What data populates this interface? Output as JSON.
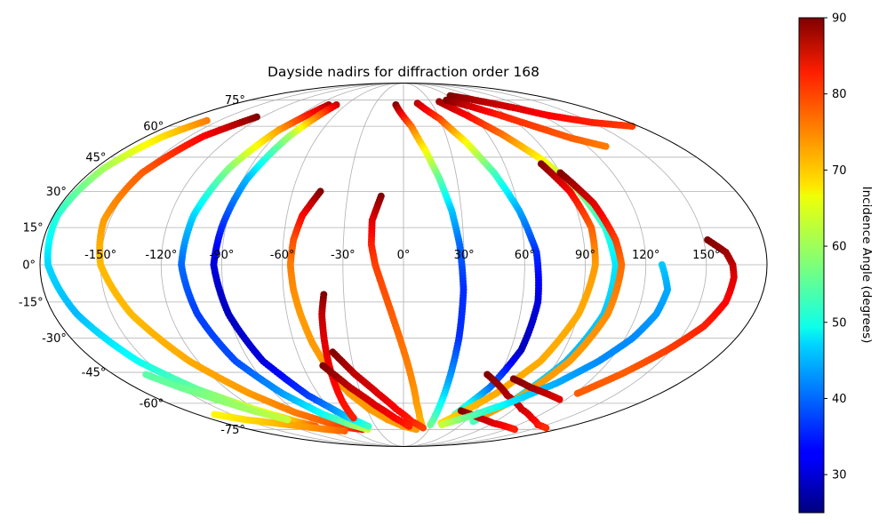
{
  "chart_data": {
    "type": "scatter",
    "projection": "mollweide",
    "title": "Dayside nadirs for diffraction order 168",
    "xticks": [
      -150,
      -120,
      -90,
      -60,
      -30,
      0,
      30,
      60,
      90,
      120,
      150
    ],
    "yticks": [
      -75,
      -60,
      -45,
      -30,
      -15,
      0,
      15,
      30,
      45,
      60,
      75
    ],
    "xtick_labels": [
      "-150°",
      "-120°",
      "-90°",
      "-60°",
      "-30°",
      "0°",
      "30°",
      "60°",
      "90°",
      "120°",
      "150°"
    ],
    "ytick_labels": [
      "-75°",
      "-60°",
      "-45°",
      "-30°",
      "-15°",
      "0°",
      "15°",
      "30°",
      "45°",
      "60°",
      "75°"
    ],
    "grid": true,
    "colormap": "jet",
    "colorbar": {
      "label": "Incidence Angle (degrees)",
      "vmin": 25,
      "vmax": 90,
      "ticks": [
        30,
        40,
        50,
        60,
        70,
        80,
        90
      ],
      "tick_labels": [
        "30",
        "40",
        "50",
        "60",
        "70",
        "80",
        "90"
      ]
    },
    "series": [
      {
        "id": "t1",
        "lon": [
          -160,
          -168,
          -175,
          -178,
          -176,
          -168,
          -155,
          -140,
          -122,
          -105,
          -95
        ],
        "lat": [
          63,
          55,
          40,
          20,
          0,
          -20,
          -40,
          -53,
          -63,
          -70,
          -73
        ],
        "inc": [
          74,
          68,
          60,
          52,
          47,
          45,
          50,
          56,
          63,
          70,
          76
        ]
      },
      {
        "id": "t2",
        "lon": [
          -125,
          -140,
          -150,
          -153,
          -150,
          -140,
          -125,
          -108,
          -92,
          -75,
          -60,
          -48
        ],
        "lat": [
          65,
          55,
          38,
          18,
          0,
          -20,
          -40,
          -55,
          -65,
          -71,
          -74,
          -75
        ],
        "inc": [
          90,
          82,
          76,
          72,
          70,
          70,
          71,
          72,
          74,
          76,
          79,
          82
        ]
      },
      {
        "id": "t3",
        "lon": [
          -78,
          -92,
          -102,
          -108,
          -110,
          -106,
          -98,
          -85,
          -70,
          -55,
          -42
        ],
        "lat": [
          72,
          58,
          40,
          20,
          0,
          -20,
          -40,
          -55,
          -66,
          -72,
          -75
        ],
        "inc": [
          87,
          72,
          58,
          47,
          40,
          37,
          38,
          43,
          50,
          57,
          62
        ]
      },
      {
        "id": "t4",
        "lon": [
          -70,
          -80,
          -88,
          -92,
          -94,
          -90,
          -82,
          -68,
          -52,
          -38
        ],
        "lat": [
          72,
          55,
          35,
          15,
          0,
          -20,
          -40,
          -56,
          -67,
          -73
        ],
        "inc": [
          85,
          60,
          45,
          36,
          31,
          29,
          31,
          37,
          45,
          53
        ]
      },
      {
        "id": "t5",
        "lon": [
          -45,
          -52,
          -55,
          -56,
          -55,
          -53,
          -50,
          -45,
          -38,
          -28,
          -15,
          0,
          15
        ],
        "lat": [
          30,
          20,
          10,
          0,
          -10,
          -20,
          -32,
          -45,
          -55,
          -63,
          -69,
          -73,
          -75
        ],
        "inc": [
          90,
          82,
          77,
          74,
          73,
          72,
          72,
          72,
          72,
          72,
          72,
          72,
          72
        ]
      },
      {
        "id": "t6",
        "lon": [
          -12,
          -16,
          -16,
          -14,
          -10,
          -6,
          -2,
          2,
          6,
          10,
          15,
          20
        ],
        "lat": [
          28,
          18,
          8,
          0,
          -10,
          -20,
          -30,
          -40,
          -50,
          -60,
          -68,
          -73
        ],
        "inc": [
          90,
          84,
          80,
          78,
          77,
          76,
          75,
          74,
          73,
          72,
          71,
          70
        ]
      },
      {
        "id": "t7",
        "lon": [
          -40,
          -42,
          -43,
          -44,
          -45,
          -46,
          -46
        ],
        "lat": [
          -12,
          -20,
          -30,
          -40,
          -50,
          -60,
          -68
        ],
        "inc": [
          90,
          86,
          84,
          83,
          82,
          81,
          80
        ]
      },
      {
        "id": "t8",
        "lon": [
          -40,
          -30,
          -18,
          -6,
          8,
          22
        ],
        "lat": [
          -36,
          -46,
          -55,
          -63,
          -70,
          -74
        ],
        "inc": [
          90,
          86,
          84,
          82,
          80,
          78
        ]
      },
      {
        "id": "t9",
        "lon": [
          -48,
          -36,
          -22,
          -8,
          6
        ],
        "lat": [
          -42,
          -52,
          -61,
          -68,
          -73
        ],
        "inc": [
          90,
          86,
          84,
          82,
          80
        ]
      },
      {
        "id": "t10",
        "lon": [
          -8,
          6,
          14,
          20,
          25,
          28,
          30,
          30,
          29,
          28
        ],
        "lat": [
          72,
          60,
          48,
          36,
          22,
          8,
          -10,
          -30,
          -50,
          -72
        ],
        "inc": [
          90,
          75,
          66,
          56,
          46,
          40,
          36,
          36,
          44,
          56
        ]
      },
      {
        "id": "t11",
        "lon": [
          15,
          30,
          42,
          52,
          60,
          66,
          68,
          66,
          58,
          45
        ],
        "lat": [
          73,
          64,
          52,
          38,
          22,
          5,
          -15,
          -35,
          -52,
          -66
        ],
        "inc": [
          86,
          78,
          66,
          54,
          44,
          36,
          31,
          29,
          40,
          55
        ]
      },
      {
        "id": "t12",
        "lon": [
          40,
          55,
          70,
          84,
          95,
          102,
          105,
          103,
          95,
          82,
          68
        ],
        "lat": [
          74,
          66,
          56,
          44,
          30,
          15,
          0,
          -20,
          -40,
          -58,
          -70
        ],
        "inc": [
          88,
          82,
          75,
          66,
          58,
          52,
          48,
          46,
          45,
          48,
          54
        ]
      },
      {
        "id": "t13",
        "lon": [
          82,
          90,
          95,
          95,
          90,
          80,
          65,
          50,
          38
        ],
        "lat": [
          42,
          30,
          15,
          0,
          -20,
          -40,
          -55,
          -65,
          -71
        ],
        "inc": [
          90,
          82,
          76,
          72,
          71,
          71,
          71,
          70,
          68
        ]
      },
      {
        "id": "t14",
        "lon": [
          90,
          100,
          106,
          108,
          105,
          97,
          85,
          72
        ],
        "lat": [
          38,
          25,
          10,
          0,
          -20,
          -40,
          -56,
          -66
        ],
        "inc": [
          90,
          84,
          78,
          75,
          73,
          72,
          72,
          72
        ]
      },
      {
        "id": "t15",
        "lon": [
          52,
          74,
          96,
          118,
          140,
          160
        ],
        "lat": [
          -46,
          -56,
          -63,
          -68,
          -72,
          -74
        ],
        "inc": [
          90,
          87,
          85,
          83,
          81,
          79
        ]
      },
      {
        "id": "t16",
        "lon": [
          48,
          70,
          90,
          110,
          130
        ],
        "lat": [
          -64,
          -68,
          -71,
          -73,
          -75
        ],
        "inc": [
          90,
          86,
          84,
          82,
          80
        ]
      },
      {
        "id": "t17",
        "lon": [
          63,
          78,
          95,
          110,
          125,
          150,
          175
        ],
        "lat": [
          78,
          76,
          73,
          70,
          66,
          62,
          60
        ],
        "inc": [
          90,
          88,
          86,
          84,
          82,
          80,
          78
        ]
      },
      {
        "id": "t18",
        "lon": [
          50,
          68,
          84,
          100,
          116,
          132
        ],
        "lat": [
          75,
          71,
          66,
          60,
          54,
          50
        ],
        "inc": [
          90,
          85,
          80,
          78,
          76,
          74
        ]
      },
      {
        "id": "t19",
        "lon": [
          152,
          160,
          163,
          164,
          163,
          158,
          148,
          136,
          122
        ],
        "lat": [
          10,
          5,
          0,
          -5,
          -15,
          -25,
          -35,
          -45,
          -55
        ],
        "inc": [
          90,
          88,
          86,
          84,
          82,
          80,
          78,
          76,
          76
        ]
      },
      {
        "id": "t20",
        "lon": [
          128,
          132,
          130,
          124,
          114,
          100,
          80,
          60,
          40
        ],
        "lat": [
          0,
          -10,
          -20,
          -30,
          -40,
          -50,
          -60,
          -67,
          -72
        ],
        "inc": [
          46,
          44,
          43,
          42,
          42,
          44,
          48,
          55,
          62
        ]
      },
      {
        "id": "t21",
        "lon": [
          70,
          85,
          100,
          115
        ],
        "lat": [
          -48,
          -52,
          -55,
          -58
        ],
        "inc": [
          90,
          88,
          86,
          84
        ]
      },
      {
        "id": "t22",
        "lon": [
          -72,
          -90,
          -110,
          -130,
          -150,
          -165
        ],
        "lat": [
          -76,
          -75,
          -73,
          -71,
          -69,
          -66
        ],
        "inc": [
          76,
          74,
          72,
          70,
          68,
          66
        ]
      },
      {
        "id": "t23",
        "lon": [
          -160,
          -150,
          -138,
          -125,
          -110
        ],
        "lat": [
          -46,
          -52,
          -58,
          -64,
          -69
        ],
        "inc": [
          55,
          56,
          58,
          60,
          62
        ]
      }
    ]
  }
}
